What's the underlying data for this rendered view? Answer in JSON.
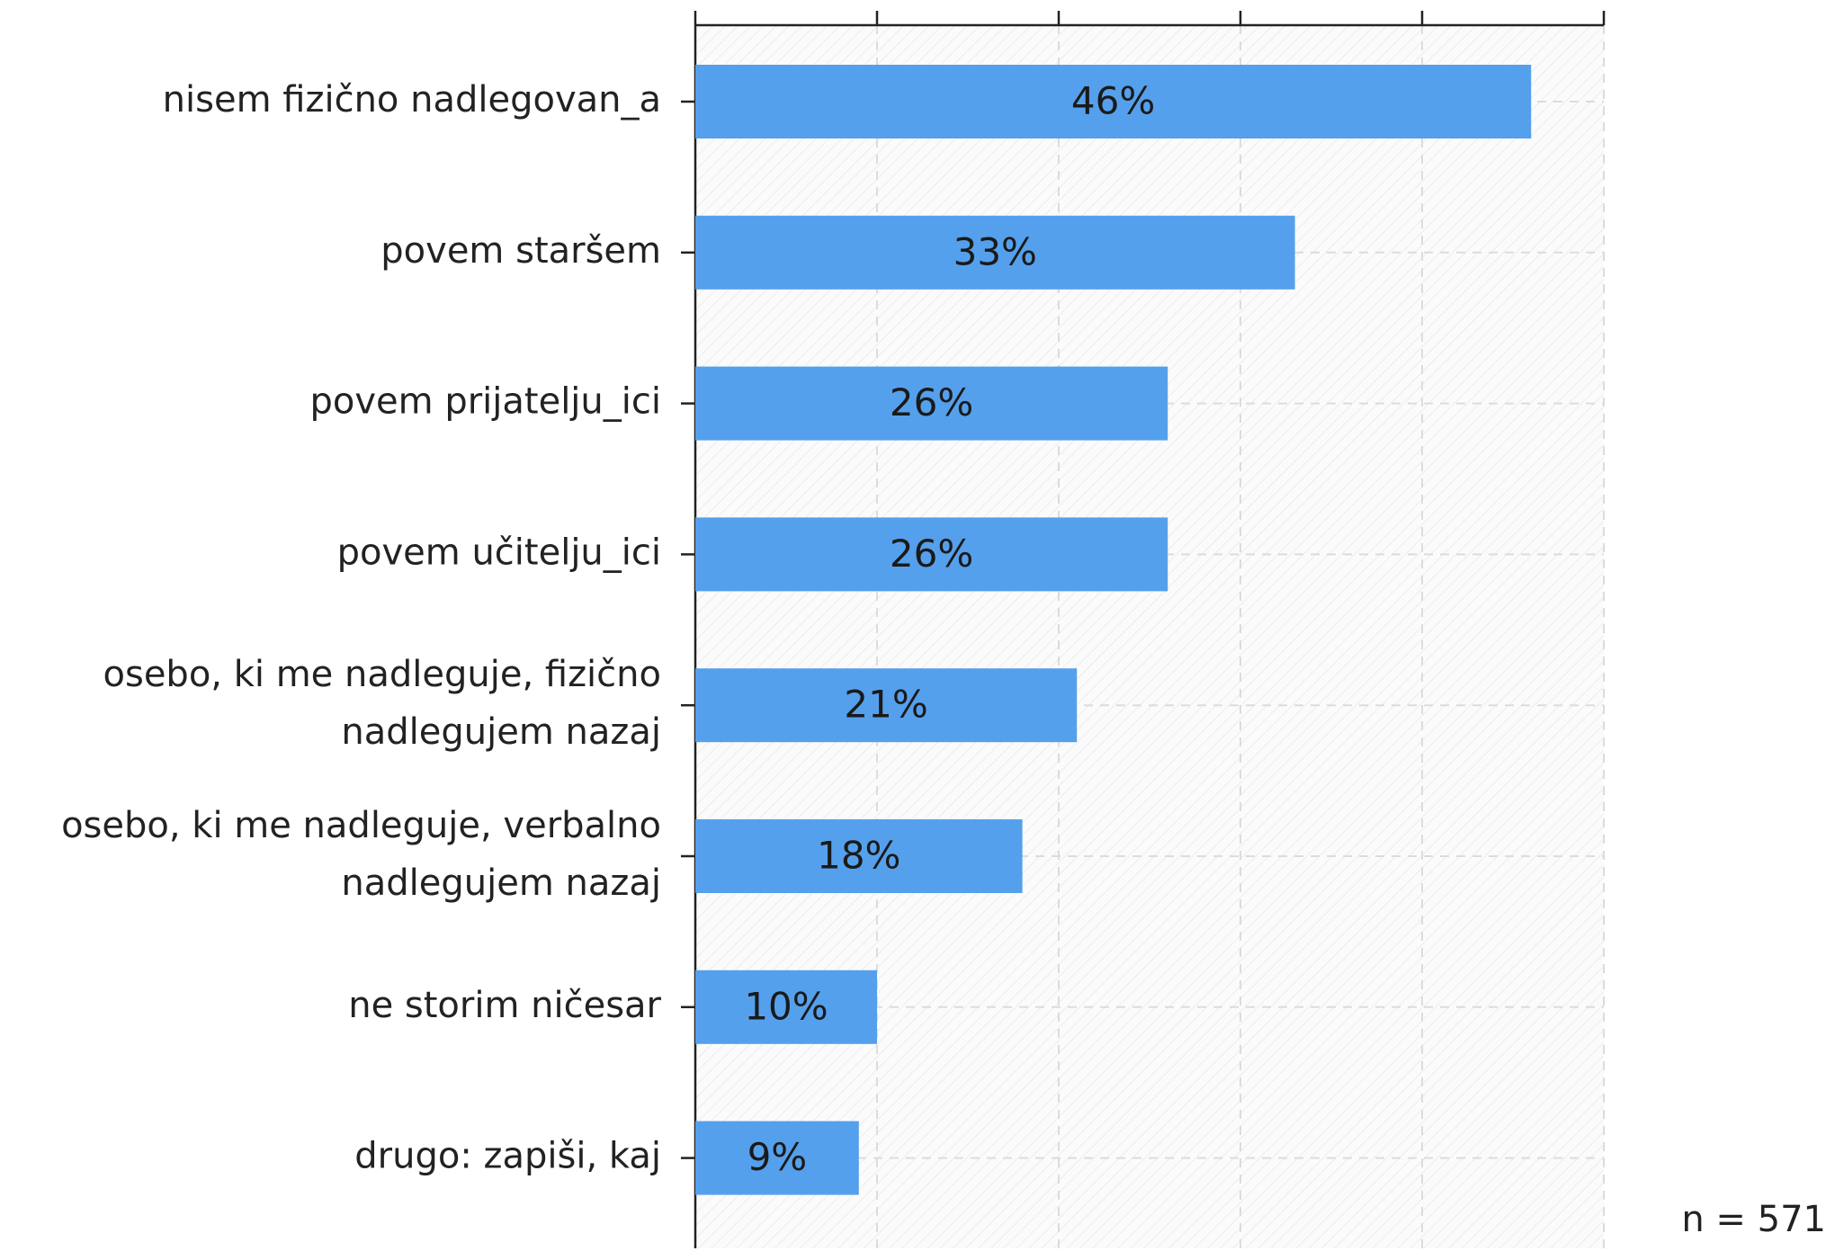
{
  "chart_data": {
    "type": "bar",
    "orientation": "horizontal",
    "categories": [
      "nisem fizično nadlegovan_a",
      "povem staršem",
      "povem prijatelju_ici",
      "povem učitelju_ici",
      "osebo, ki me nadleguje, fizično nadlegujem nazaj",
      "osebo, ki me nadleguje, verbalno nadlegujem nazaj",
      "ne storim ničesar",
      "drugo: zapiši, kaj"
    ],
    "values": [
      46,
      33,
      26,
      26,
      21,
      18,
      10,
      9
    ],
    "value_labels": [
      "46%",
      "33%",
      "26%",
      "26%",
      "21%",
      "18%",
      "10%",
      "9%"
    ],
    "color": "#55a0ec",
    "xlim": [
      0,
      50
    ],
    "xticks": [
      0,
      10,
      20,
      30,
      40,
      50
    ],
    "grid": true,
    "annotation": "n = 571"
  }
}
